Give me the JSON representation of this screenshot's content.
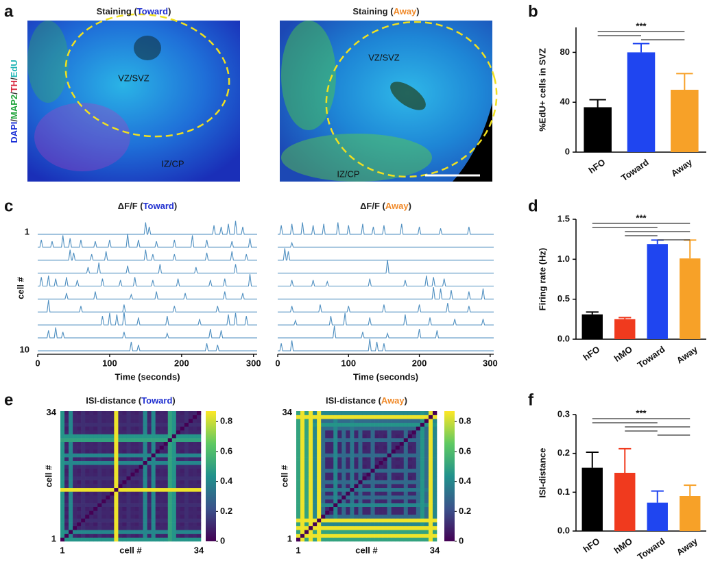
{
  "panels": {
    "letters": [
      "a",
      "b",
      "c",
      "d",
      "e",
      "f"
    ]
  },
  "staining": {
    "channel_label": [
      {
        "text": "DAPI",
        "color": "#1a2fd6"
      },
      {
        "text": "/",
        "color": "#333333"
      },
      {
        "text": "MAP2",
        "color": "#1fa33a"
      },
      {
        "text": "/",
        "color": "#333333"
      },
      {
        "text": "TH",
        "color": "#d7263d"
      },
      {
        "text": "/",
        "color": "#333333"
      },
      {
        "text": "EdU",
        "color": "#1fb5b5"
      }
    ],
    "images": [
      {
        "title_parts": [
          {
            "text": "Staining (",
            "color": "#222222"
          },
          {
            "text": "Toward",
            "color": "#1f2fd0"
          },
          {
            "text": ")",
            "color": "#222222"
          }
        ],
        "region_labels": [
          "VZ/SVZ",
          "IZ/CP"
        ]
      },
      {
        "title_parts": [
          {
            "text": "Staining (",
            "color": "#222222"
          },
          {
            "text": "Away",
            "color": "#f08a2a"
          },
          {
            "text": ")",
            "color": "#222222"
          }
        ],
        "region_labels": [
          "VZ/SVZ",
          "IZ/CP"
        ]
      }
    ]
  },
  "chart_data": [
    {
      "type": "bar",
      "ylabel": "%EdU+ cells in SVZ",
      "categories": [
        "hFO",
        "Toward",
        "Away"
      ],
      "category_colors": [
        "#111111",
        "#1f2fd0",
        "#f08a2a"
      ],
      "colors": [
        "#000000",
        "#1f45f0",
        "#f7a128"
      ],
      "values": [
        36,
        80,
        50
      ],
      "errors": [
        6,
        7,
        13
      ],
      "ylim": [
        0,
        100
      ],
      "yticks": [
        0,
        40,
        80
      ],
      "significance": {
        "label": "***",
        "pairs": [
          [
            0,
            2
          ],
          [
            0,
            1
          ],
          [
            1,
            2
          ]
        ]
      }
    },
    {
      "type": "traces",
      "title_parts": [
        {
          "text": "ΔF/F (",
          "color": "#222222"
        },
        {
          "text": "Toward",
          "color": "#1f2fd0"
        },
        {
          "text": ")",
          "color": "#222222"
        }
      ],
      "xlabel": "Time (seconds)",
      "ylabel": "cell #",
      "row_labels": [
        "1",
        "10"
      ],
      "color": "#4f8fc0",
      "xlim": [
        0,
        305
      ],
      "xticks": [
        0,
        100,
        200,
        300
      ],
      "traces": [
        [
          [
            150,
            0.8
          ],
          [
            155,
            0.5
          ],
          [
            245,
            0.6
          ],
          [
            255,
            0.5
          ],
          [
            265,
            0.7
          ],
          [
            275,
            0.9
          ],
          [
            285,
            0.5
          ]
        ],
        [
          [
            5,
            0.5
          ],
          [
            20,
            0.4
          ],
          [
            35,
            0.8
          ],
          [
            45,
            0.6
          ],
          [
            60,
            0.5
          ],
          [
            80,
            0.4
          ],
          [
            100,
            0.5
          ],
          [
            125,
            0.9
          ],
          [
            140,
            0.5
          ],
          [
            165,
            0.4
          ],
          [
            190,
            0.5
          ],
          [
            215,
            0.8
          ],
          [
            235,
            0.5
          ],
          [
            270,
            0.4
          ],
          [
            295,
            0.6
          ]
        ],
        [
          [
            45,
            0.7
          ],
          [
            50,
            0.5
          ],
          [
            75,
            0.4
          ],
          [
            95,
            0.6
          ],
          [
            150,
            0.7
          ],
          [
            160,
            0.4
          ],
          [
            190,
            0.4
          ],
          [
            235,
            0.5
          ],
          [
            270,
            0.6
          ],
          [
            290,
            0.4
          ]
        ],
        [
          [
            70,
            0.4
          ],
          [
            85,
            0.7
          ],
          [
            125,
            0.5
          ],
          [
            170,
            0.6
          ],
          [
            220,
            0.4
          ],
          [
            275,
            0.6
          ]
        ],
        [
          [
            5,
            0.6
          ],
          [
            15,
            0.7
          ],
          [
            25,
            0.5
          ],
          [
            40,
            0.6
          ],
          [
            55,
            0.4
          ],
          [
            90,
            0.5
          ],
          [
            115,
            0.4
          ],
          [
            135,
            0.6
          ],
          [
            160,
            0.4
          ],
          [
            195,
            0.5
          ],
          [
            240,
            0.4
          ],
          [
            260,
            0.5
          ],
          [
            295,
            0.8
          ]
        ],
        [
          [
            40,
            0.4
          ],
          [
            80,
            0.5
          ],
          [
            130,
            0.3
          ],
          [
            165,
            0.5
          ],
          [
            205,
            0.4
          ],
          [
            260,
            0.5
          ],
          [
            285,
            0.4
          ]
        ],
        [
          [
            15,
            0.8
          ],
          [
            60,
            0.4
          ],
          [
            120,
            0.5
          ],
          [
            190,
            0.4
          ],
          [
            250,
            0.4
          ]
        ],
        [
          [
            90,
            0.6
          ],
          [
            100,
            0.8
          ],
          [
            110,
            0.7
          ],
          [
            120,
            0.9
          ],
          [
            140,
            0.5
          ],
          [
            180,
            0.6
          ],
          [
            225,
            0.4
          ],
          [
            265,
            0.7
          ],
          [
            275,
            0.8
          ],
          [
            290,
            0.6
          ]
        ],
        [
          [
            15,
            0.5
          ],
          [
            25,
            0.7
          ],
          [
            35,
            0.4
          ],
          [
            120,
            0.4
          ],
          [
            180,
            0.3
          ],
          [
            240,
            0.6
          ],
          [
            255,
            0.5
          ]
        ],
        [
          [
            130,
            0.6
          ],
          [
            140,
            0.4
          ],
          [
            235,
            0.5
          ],
          [
            250,
            0.4
          ]
        ]
      ]
    },
    {
      "type": "traces",
      "title_parts": [
        {
          "text": "ΔF/F (",
          "color": "#222222"
        },
        {
          "text": "Away",
          "color": "#f08a2a"
        },
        {
          "text": ")",
          "color": "#222222"
        }
      ],
      "xlabel": "Time (seconds)",
      "color": "#4f8fc0",
      "xlim": [
        0,
        305
      ],
      "xticks": [
        0,
        100,
        200,
        300
      ],
      "traces": [
        [
          [
            5,
            0.6
          ],
          [
            20,
            0.7
          ],
          [
            35,
            0.8
          ],
          [
            50,
            0.6
          ],
          [
            65,
            0.7
          ],
          [
            85,
            0.8
          ],
          [
            100,
            0.6
          ],
          [
            120,
            0.7
          ],
          [
            135,
            0.5
          ],
          [
            150,
            0.6
          ],
          [
            175,
            0.7
          ],
          [
            200,
            0.5
          ],
          [
            230,
            0.4
          ],
          [
            270,
            0.5
          ]
        ],
        [
          [
            20,
            0.3
          ]
        ],
        [
          [
            10,
            0.8
          ],
          [
            15,
            0.6
          ]
        ],
        [
          [
            155,
            0.9
          ]
        ],
        [
          [
            20,
            0.4
          ],
          [
            50,
            0.4
          ],
          [
            70,
            0.3
          ],
          [
            130,
            0.5
          ],
          [
            180,
            0.4
          ],
          [
            210,
            0.7
          ],
          [
            220,
            0.6
          ],
          [
            235,
            0.5
          ]
        ],
        [
          [
            220,
            0.8
          ],
          [
            230,
            0.7
          ],
          [
            245,
            0.6
          ],
          [
            270,
            0.5
          ],
          [
            290,
            0.7
          ]
        ],
        [
          [
            20,
            0.4
          ],
          [
            60,
            0.5
          ],
          [
            100,
            0.4
          ],
          [
            150,
            0.5
          ],
          [
            200,
            0.5
          ],
          [
            240,
            0.6
          ],
          [
            270,
            0.4
          ]
        ],
        [
          [
            25,
            0.3
          ],
          [
            75,
            0.6
          ],
          [
            95,
            0.8
          ],
          [
            130,
            0.5
          ],
          [
            180,
            0.7
          ],
          [
            215,
            0.5
          ],
          [
            250,
            0.4
          ],
          [
            290,
            0.4
          ]
        ],
        [
          [
            80,
            0.8
          ],
          [
            120,
            0.4
          ],
          [
            155,
            0.3
          ],
          [
            200,
            0.6
          ],
          [
            225,
            0.5
          ]
        ],
        [
          [
            5,
            0.5
          ],
          [
            20,
            0.7
          ],
          [
            130,
            0.8
          ],
          [
            140,
            0.6
          ],
          [
            150,
            0.5
          ]
        ]
      ]
    },
    {
      "type": "bar",
      "ylabel": "Firing rate (Hz)",
      "categories": [
        "hFO",
        "hMO",
        "Toward",
        "Away"
      ],
      "category_colors": [
        "#111111",
        "#e0321e",
        "#1f2fd0",
        "#f08a2a"
      ],
      "colors": [
        "#000000",
        "#f03a1e",
        "#1f45f0",
        "#f7a128"
      ],
      "values": [
        0.31,
        0.25,
        1.19,
        1.01
      ],
      "errors": [
        0.03,
        0.02,
        0.05,
        0.23
      ],
      "ylim": [
        0,
        1.5
      ],
      "yticks": [
        {
          "value": 0,
          "label": "0.0"
        },
        0.5,
        {
          "value": 1,
          "label": "1.0"
        },
        1.5
      ],
      "significance": {
        "label": "***",
        "pairs": [
          [
            0,
            3
          ],
          [
            0,
            2
          ],
          [
            1,
            3
          ],
          [
            1,
            2
          ],
          [
            2,
            3
          ]
        ]
      }
    },
    {
      "type": "heatmap",
      "title_parts": [
        {
          "text": "ISI-distance (",
          "color": "#222222"
        },
        {
          "text": "Toward",
          "color": "#1f2fd0"
        },
        {
          "text": ")",
          "color": "#222222"
        }
      ],
      "xlabel": "cell #",
      "ylabel": "cell #",
      "xticks": [
        1,
        34
      ],
      "yticks": [
        1,
        34
      ],
      "colorbar_lim": [
        0,
        0.87
      ],
      "colorbar_ticks": [
        0,
        0.2,
        0.4,
        0.6,
        0.8
      ],
      "cell_levels": [
        0.45,
        0.08,
        0.4,
        0.1,
        0.06,
        0.12,
        0.08,
        0.1,
        0.07,
        0.12,
        0.09,
        0.1,
        0.08,
        0.85,
        0.1,
        0.07,
        0.12,
        0.09,
        0.08,
        0.11,
        0.4,
        0.1,
        0.4,
        0.08,
        0.1,
        0.09,
        0.5,
        0.45,
        0.1,
        0.08,
        0.12,
        0.09,
        0.1,
        0.08
      ]
    },
    {
      "type": "heatmap",
      "title_parts": [
        {
          "text": "ISI-distance (",
          "color": "#222222"
        },
        {
          "text": "Away",
          "color": "#f08a2a"
        },
        {
          "text": ")",
          "color": "#222222"
        }
      ],
      "xlabel": "cell #",
      "ylabel": "cell #",
      "xticks": [
        1,
        34
      ],
      "yticks": [
        1,
        34
      ],
      "colorbar_lim": [
        0,
        0.87
      ],
      "colorbar_ticks": [
        0,
        0.2,
        0.4,
        0.6,
        0.8
      ],
      "cell_levels": [
        0.5,
        0.85,
        0.5,
        0.85,
        0.4,
        0.85,
        0.3,
        0.1,
        0.1,
        0.4,
        0.1,
        0.3,
        0.1,
        0.35,
        0.1,
        0.3,
        0.08,
        0.1,
        0.3,
        0.08,
        0.1,
        0.08,
        0.3,
        0.1,
        0.08,
        0.1,
        0.3,
        0.08,
        0.1,
        0.3,
        0.45,
        0.3,
        0.85,
        0.4
      ]
    },
    {
      "type": "bar",
      "ylabel": "ISI-distance",
      "categories": [
        "hFO",
        "hMO",
        "Toward",
        "Away"
      ],
      "category_colors": [
        "#111111",
        "#e0321e",
        "#1f2fd0",
        "#f08a2a"
      ],
      "colors": [
        "#000000",
        "#f03a1e",
        "#1f45f0",
        "#f7a128"
      ],
      "values": [
        0.163,
        0.15,
        0.073,
        0.09
      ],
      "errors": [
        0.04,
        0.062,
        0.03,
        0.028
      ],
      "ylim": [
        0,
        0.3
      ],
      "yticks": [
        {
          "value": 0,
          "label": "0.0"
        },
        0.1,
        0.2,
        0.3
      ],
      "significance": {
        "label": "***",
        "pairs": [
          [
            0,
            3
          ],
          [
            0,
            2
          ],
          [
            1,
            3
          ],
          [
            1,
            2
          ],
          [
            2,
            3
          ]
        ]
      }
    }
  ]
}
